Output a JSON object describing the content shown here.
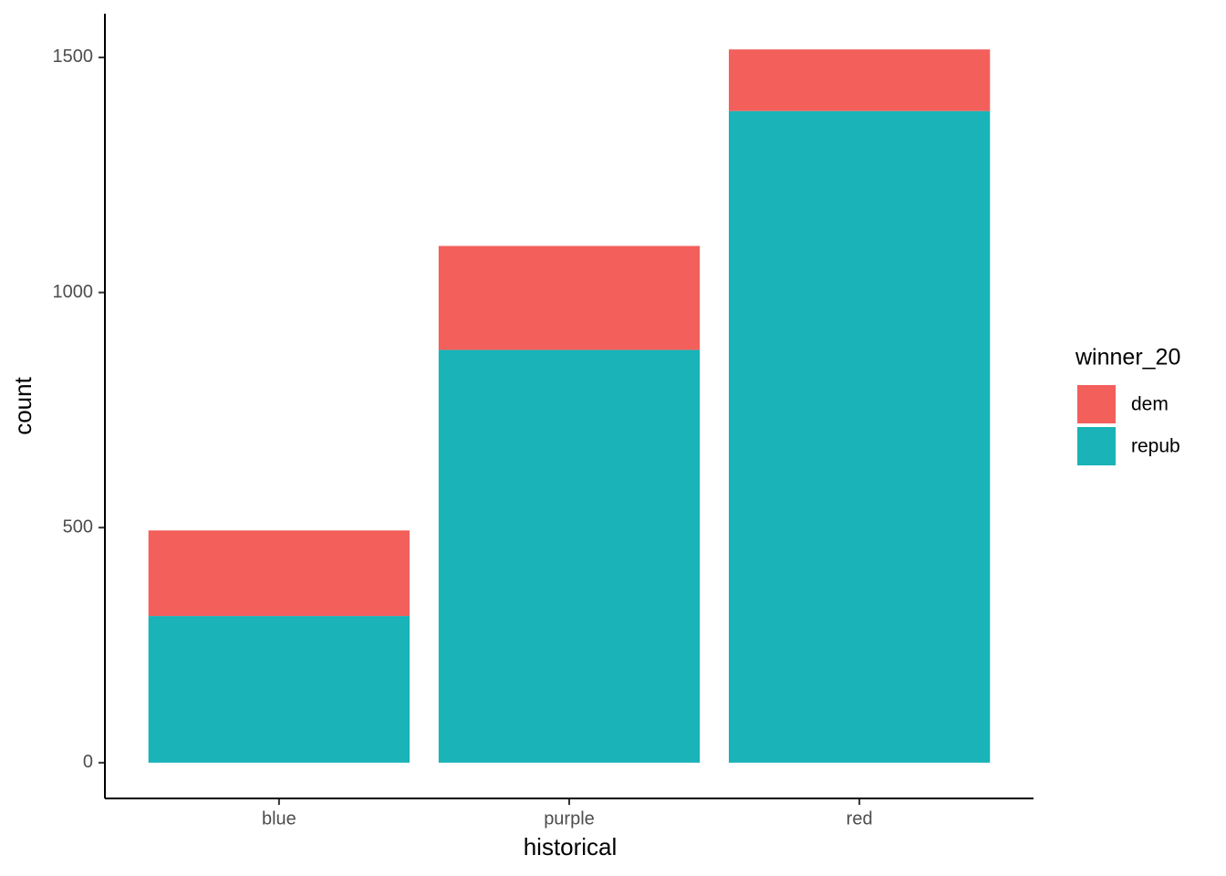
{
  "chart_data": {
    "type": "bar",
    "stacked": true,
    "x_label": "historical",
    "y_label": "count",
    "categories": [
      "blue",
      "purple",
      "red"
    ],
    "series": [
      {
        "name": "dem",
        "color": "#f35f5b",
        "values": [
          182,
          221,
          131
        ]
      },
      {
        "name": "repub",
        "color": "#19b3b8",
        "values": [
          312,
          878,
          1386
        ]
      }
    ],
    "legend_title": "winner_20",
    "legend": "right",
    "ylim": [
      -76,
      1593
    ],
    "yticks": [
      0,
      500,
      1000,
      1500
    ],
    "grid": false
  }
}
